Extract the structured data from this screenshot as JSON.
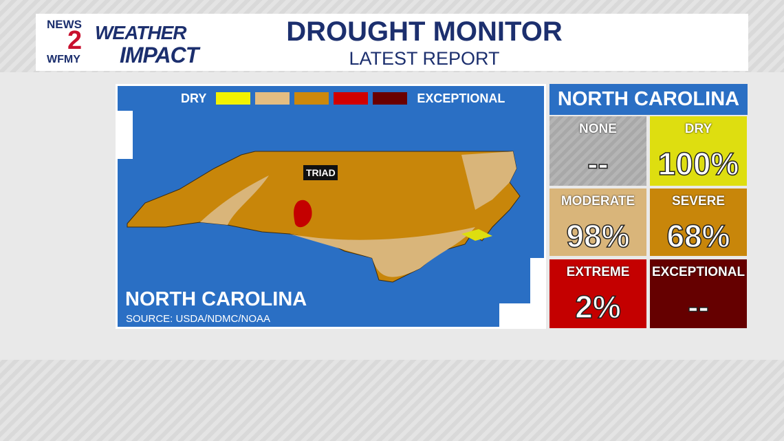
{
  "header": {
    "logo_top": "NEWS",
    "logo_number": "2",
    "logo_bottom": "WFMY",
    "brand_line1": "WEATHER",
    "brand_line2": "IMPACT",
    "title": "DROUGHT MONITOR",
    "subtitle": "LATEST REPORT"
  },
  "map": {
    "legend_start": "DRY",
    "legend_end": "EXCEPTIONAL",
    "legend_colors": [
      "#f2f200",
      "#e3bd82",
      "#cc880c",
      "#d10000",
      "#6a0000"
    ],
    "city": "TRIAD",
    "region": "NORTH CAROLINA",
    "source": "SOURCE: USDA/NDMC/NOAA"
  },
  "panel": {
    "title": "NORTH CAROLINA",
    "cells": [
      {
        "label": "NONE",
        "value": "--",
        "color": "#a8a8a8"
      },
      {
        "label": "DRY",
        "value": "100%",
        "color": "#dede10"
      },
      {
        "label": "MODERATE",
        "value": "98%",
        "color": "#d9b57a"
      },
      {
        "label": "SEVERE",
        "value": "68%",
        "color": "#c8860a"
      },
      {
        "label": "EXTREME",
        "value": "2%",
        "color": "#c40000"
      },
      {
        "label": "EXCEPTIONAL",
        "value": "--",
        "color": "#650000"
      }
    ]
  }
}
